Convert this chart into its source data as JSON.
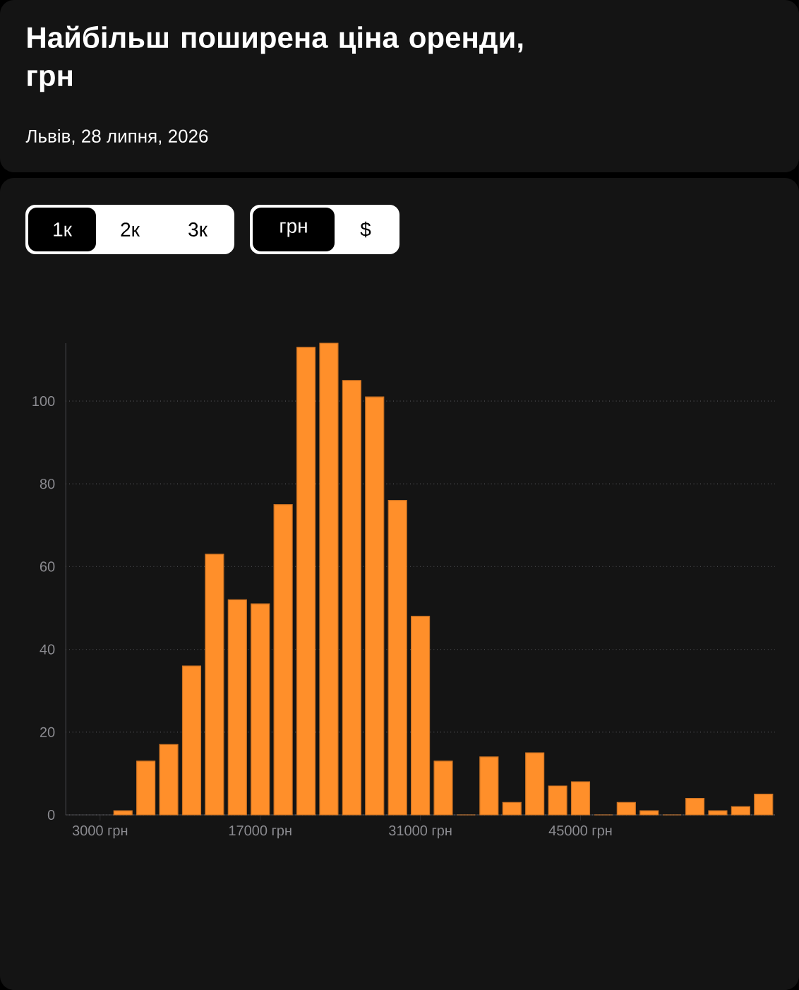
{
  "chart_data": {
    "type": "histogram",
    "title": "Найбільш поширена ціна оренди, грн",
    "subtitle": "Львів, 28 липня, 2026",
    "annotations": [
      "1к",
      "2к",
      "3к",
      "грн",
      "$"
    ],
    "bins": [
      4000,
      6000,
      8000,
      10000,
      12000,
      14000,
      16000,
      18000,
      20000,
      22000,
      24000,
      26000,
      28000,
      30000,
      32000,
      34000,
      36000,
      38000,
      40000,
      42000,
      44000,
      46000,
      48000,
      50000,
      52000,
      54000,
      56000,
      58000,
      60000,
      62000
    ],
    "values": [
      1,
      13,
      17,
      36,
      63,
      52,
      51,
      75,
      113,
      114,
      105,
      101,
      76,
      48,
      13,
      0,
      14,
      3,
      15,
      7,
      8,
      0,
      3,
      1,
      0,
      4,
      1,
      2,
      5
    ],
    "color": "#ff8f2a",
    "xlim": [
      0,
      62000
    ],
    "ylim": [
      0,
      114
    ],
    "xticks": [
      {
        "value": 3000,
        "label": "3000 грн"
      },
      {
        "value": 17000,
        "label": "17000 грн"
      },
      {
        "value": 31000,
        "label": "31000 грн"
      },
      {
        "value": 45000,
        "label": "45000 грн"
      }
    ],
    "yticks": [
      0,
      20,
      40,
      60,
      80,
      100
    ],
    "grid": "y"
  }
}
